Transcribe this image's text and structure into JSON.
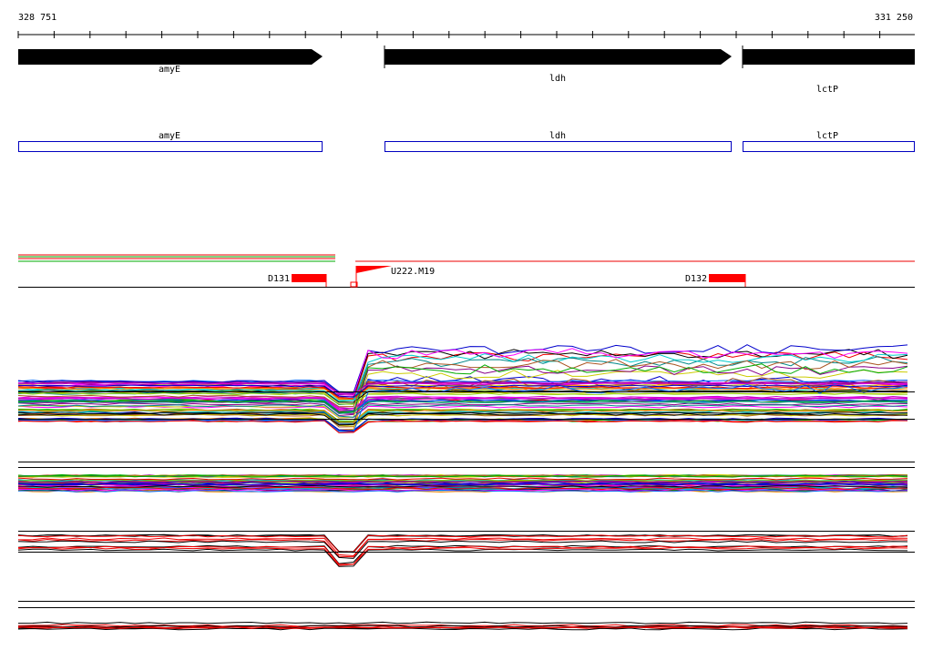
{
  "ruler": {
    "start": "328 751",
    "end": "331 250"
  },
  "genes": [
    {
      "label": "amyE"
    },
    {
      "label": "ldh"
    },
    {
      "label": "lctP"
    }
  ],
  "annotations": [
    {
      "label": "amyE"
    },
    {
      "label": "ldh"
    },
    {
      "label": "lctP"
    }
  ],
  "features": [
    {
      "label": "D131"
    },
    {
      "label": "U222.M19"
    },
    {
      "label": "D132"
    }
  ]
}
